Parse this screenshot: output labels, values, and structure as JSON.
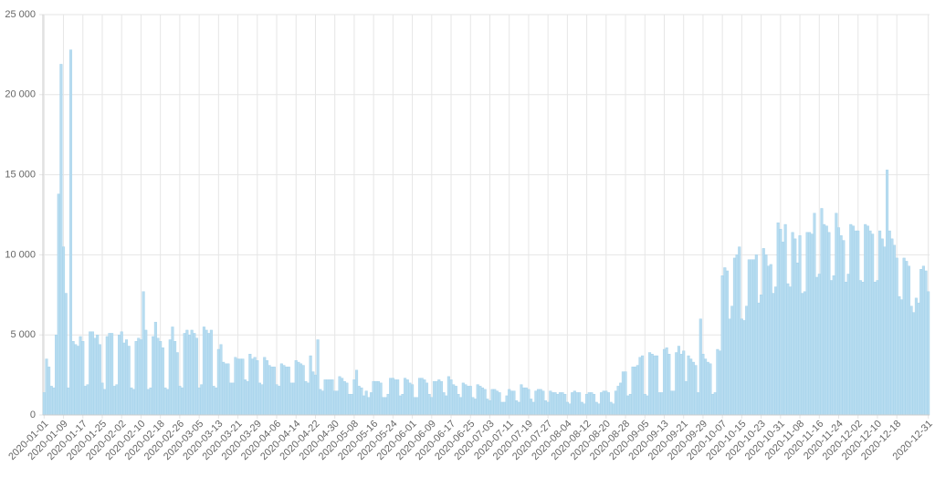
{
  "chart_data": {
    "type": "bar",
    "color": "#b7dcf0",
    "grid": true,
    "ylim": [
      0,
      25000
    ],
    "yticks": [
      0,
      {
        "value": 5000,
        "label": "5 000"
      },
      {
        "value": 10000,
        "label": "10 000"
      },
      {
        "value": 15000,
        "label": "15 000"
      },
      {
        "value": 20000,
        "label": "20 000"
      },
      {
        "value": 25000,
        "label": "25 000"
      }
    ],
    "categories": [
      "2020-01-01",
      null,
      null,
      null,
      null,
      null,
      null,
      null,
      "2020-01-09",
      null,
      null,
      null,
      null,
      null,
      null,
      null,
      "2020-01-17",
      null,
      null,
      null,
      null,
      null,
      null,
      null,
      "2020-01-25",
      null,
      null,
      null,
      null,
      null,
      null,
      null,
      "2020-02-02",
      null,
      null,
      null,
      null,
      null,
      null,
      null,
      "2020-02-10",
      null,
      null,
      null,
      null,
      null,
      null,
      null,
      "2020-02-18",
      null,
      null,
      null,
      null,
      null,
      null,
      null,
      "2020-02-26",
      null,
      null,
      null,
      null,
      null,
      null,
      null,
      "2020-03-05",
      null,
      null,
      null,
      null,
      null,
      null,
      null,
      "2020-03-13",
      null,
      null,
      null,
      null,
      null,
      null,
      null,
      "2020-03-21",
      null,
      null,
      null,
      null,
      null,
      null,
      null,
      "2020-03-29",
      null,
      null,
      null,
      null,
      null,
      null,
      null,
      "2020-04-06",
      null,
      null,
      null,
      null,
      null,
      null,
      null,
      "2020-04-14",
      null,
      null,
      null,
      null,
      null,
      null,
      null,
      "2020-04-22",
      null,
      null,
      null,
      null,
      null,
      null,
      null,
      "2020-04-30",
      null,
      null,
      null,
      null,
      null,
      null,
      null,
      "2020-05-08",
      null,
      null,
      null,
      null,
      null,
      null,
      null,
      "2020-05-16",
      null,
      null,
      null,
      null,
      null,
      null,
      null,
      "2020-05-24",
      null,
      null,
      null,
      null,
      null,
      null,
      null,
      "2020-06-01",
      null,
      null,
      null,
      null,
      null,
      null,
      null,
      "2020-06-09",
      null,
      null,
      null,
      null,
      null,
      null,
      null,
      "2020-06-17",
      null,
      null,
      null,
      null,
      null,
      null,
      null,
      "2020-06-25",
      null,
      null,
      null,
      null,
      null,
      null,
      null,
      "2020-07-03",
      null,
      null,
      null,
      null,
      null,
      null,
      null,
      "2020-07-11",
      null,
      null,
      null,
      null,
      null,
      null,
      null,
      "2020-07-19",
      null,
      null,
      null,
      null,
      null,
      null,
      null,
      "2020-07-27",
      null,
      null,
      null,
      null,
      null,
      null,
      null,
      "2020-08-04",
      null,
      null,
      null,
      null,
      null,
      null,
      null,
      "2020-08-12",
      null,
      null,
      null,
      null,
      null,
      null,
      null,
      "2020-08-20",
      null,
      null,
      null,
      null,
      null,
      null,
      null,
      "2020-08-28",
      null,
      null,
      null,
      null,
      null,
      null,
      null,
      "2020-09-05",
      null,
      null,
      null,
      null,
      null,
      null,
      null,
      "2020-09-13",
      null,
      null,
      null,
      null,
      null,
      null,
      null,
      "2020-09-21",
      null,
      null,
      null,
      null,
      null,
      null,
      null,
      "2020-09-29",
      null,
      null,
      null,
      null,
      null,
      null,
      null,
      "2020-10-07",
      null,
      null,
      null,
      null,
      null,
      null,
      null,
      "2020-10-15",
      null,
      null,
      null,
      null,
      null,
      null,
      null,
      "2020-10-23",
      null,
      null,
      null,
      null,
      null,
      null,
      null,
      "2020-10-31",
      null,
      null,
      null,
      null,
      null,
      null,
      null,
      "2020-11-08",
      null,
      null,
      null,
      null,
      null,
      null,
      null,
      "2020-11-16",
      null,
      null,
      null,
      null,
      null,
      null,
      null,
      "2020-11-24",
      null,
      null,
      null,
      null,
      null,
      null,
      null,
      "2020-12-02",
      null,
      null,
      null,
      null,
      null,
      null,
      null,
      "2020-12-10",
      null,
      null,
      null,
      null,
      null,
      null,
      null,
      "2020-12-18",
      null,
      null,
      null,
      null,
      null,
      null,
      null,
      null,
      null,
      null,
      null,
      null,
      "2020-12-31"
    ],
    "values": [
      1400,
      3500,
      3000,
      1800,
      1700,
      5000,
      13800,
      21900,
      10500,
      7600,
      1700,
      22800,
      4600,
      4400,
      4300,
      4900,
      4600,
      1800,
      1900,
      5200,
      5200,
      4800,
      5000,
      4400,
      2000,
      1600,
      4900,
      5100,
      5100,
      1800,
      1900,
      5000,
      5200,
      4500,
      4700,
      4300,
      1700,
      1600,
      4600,
      4800,
      4700,
      7700,
      5300,
      1600,
      1700,
      4900,
      5800,
      4800,
      4600,
      4200,
      1700,
      1600,
      4700,
      5500,
      4600,
      3900,
      1800,
      1700,
      5100,
      5300,
      5000,
      5300,
      5100,
      4800,
      1700,
      1900,
      5500,
      5300,
      5100,
      5300,
      1800,
      1700,
      4100,
      4400,
      3300,
      3200,
      3200,
      2000,
      2000,
      3600,
      3500,
      3500,
      3500,
      2200,
      2100,
      3800,
      3500,
      3600,
      3400,
      2000,
      1900,
      3600,
      3400,
      3100,
      3000,
      3000,
      1900,
      1800,
      3200,
      3100,
      3000,
      3000,
      2000,
      2000,
      3400,
      3300,
      3200,
      3100,
      2100,
      2000,
      3700,
      2700,
      2500,
      4700,
      1600,
      1500,
      2200,
      2200,
      2200,
      2200,
      1500,
      1500,
      2400,
      2300,
      2100,
      2000,
      1300,
      1300,
      2200,
      2800,
      1800,
      1700,
      1200,
      1500,
      1100,
      1400,
      2100,
      2100,
      2100,
      2000,
      1100,
      1100,
      1300,
      2300,
      2300,
      2200,
      2200,
      1200,
      1300,
      2300,
      2200,
      2000,
      1900,
      1100,
      1100,
      2300,
      2300,
      2200,
      2000,
      1300,
      1100,
      2100,
      2100,
      2200,
      2100,
      1400,
      1200,
      2400,
      2200,
      1900,
      1800,
      1300,
      1100,
      2000,
      1900,
      1800,
      1800,
      1100,
      1000,
      1900,
      1800,
      1700,
      1600,
      1000,
      900,
      1600,
      1600,
      1500,
      1400,
      800,
      800,
      1200,
      1600,
      1500,
      1500,
      900,
      800,
      1900,
      1700,
      1700,
      1600,
      1000,
      800,
      1500,
      1600,
      1600,
      1500,
      900,
      800,
      1500,
      1400,
      1400,
      1300,
      1400,
      1400,
      1300,
      800,
      700,
      1400,
      1500,
      1400,
      1400,
      800,
      700,
      1300,
      1400,
      1400,
      1300,
      800,
      700,
      1400,
      1500,
      1500,
      1400,
      800,
      700,
      1500,
      1800,
      2000,
      2700,
      2700,
      1200,
      1300,
      3000,
      3000,
      3100,
      3600,
      3700,
      1300,
      1200,
      3900,
      3800,
      3700,
      3700,
      1400,
      1400,
      4100,
      4200,
      3800,
      1500,
      1500,
      3900,
      4300,
      3800,
      4000,
      2100,
      3700,
      3500,
      3300,
      3100,
      1400,
      6000,
      3800,
      3500,
      3300,
      3200,
      1300,
      1400,
      4100,
      4000,
      8700,
      9200,
      9000,
      6000,
      6800,
      9800,
      10000,
      10500,
      6000,
      5900,
      6800,
      9700,
      9700,
      9700,
      10000,
      7000,
      7500,
      10400,
      10000,
      9300,
      9400,
      7600,
      8000,
      12000,
      11600,
      10800,
      11900,
      8200,
      8000,
      11400,
      11000,
      9500,
      11200,
      7600,
      7700,
      11400,
      11400,
      11300,
      12600,
      8600,
      8800,
      12900,
      11900,
      11800,
      11400,
      8400,
      8700,
      12600,
      11700,
      11200,
      10900,
      8300,
      8800,
      11900,
      11800,
      11500,
      11500,
      8400,
      8300,
      11900,
      11800,
      11500,
      11300,
      8300,
      8400,
      11500,
      11000,
      10500,
      15300,
      11500,
      11000,
      10600,
      9800,
      7400,
      7200,
      9800,
      9600,
      9300,
      6800,
      6400,
      7300,
      7000,
      9100,
      9300,
      9000,
      7700
    ]
  }
}
